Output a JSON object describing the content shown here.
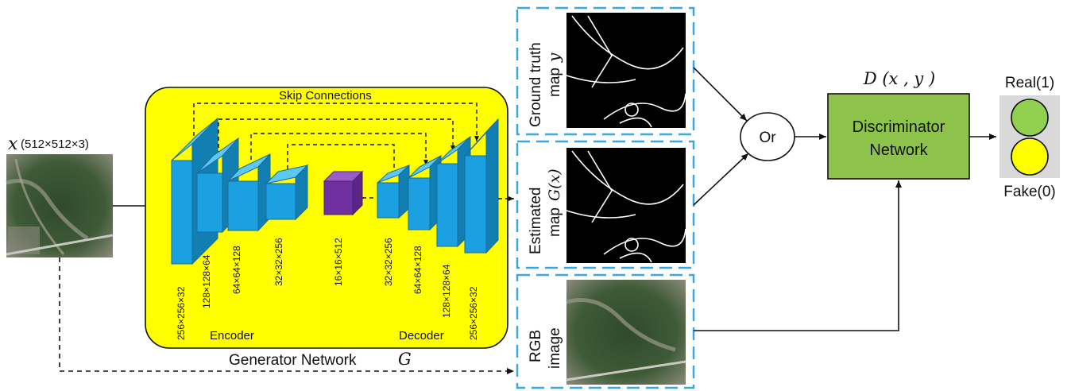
{
  "input": {
    "symbol": "x",
    "dims": "(512×512×3)"
  },
  "generator": {
    "skip_label": "Skip Connections",
    "encoder_label": "Encoder",
    "decoder_label": "Decoder",
    "title": "Generator Network",
    "title_symbol": "G",
    "layer_dims": [
      "256×256×32",
      "128×128×64",
      "64×64×128",
      "32×32×256",
      "16×16×512",
      "32×32×256",
      "64×64×128",
      "128×128×64",
      "256×256×32"
    ]
  },
  "panels": {
    "ground_truth": {
      "line1": "Ground truth",
      "line2": "map",
      "symbol": "y"
    },
    "estimated": {
      "line1": "Estimated",
      "line2": "map",
      "symbol": "G(x)"
    },
    "rgb": {
      "line1": "RGB",
      "line2": "image"
    }
  },
  "or_node": {
    "label": "Or"
  },
  "discriminator": {
    "formula": "D (x , y )",
    "line1": "Discriminator",
    "line2": "Network"
  },
  "output": {
    "real_label": "Real(1)",
    "fake_label": "Fake(0)"
  },
  "colors": {
    "generator_fill": "#ffff00",
    "layer_blue": "#1ba1e2",
    "bottleneck_purple": "#7030a0",
    "panel_border": "#3aa7e0",
    "discriminator_fill": "#8dc34a",
    "real_green": "#92d050",
    "fake_yellow": "#ffff00"
  }
}
